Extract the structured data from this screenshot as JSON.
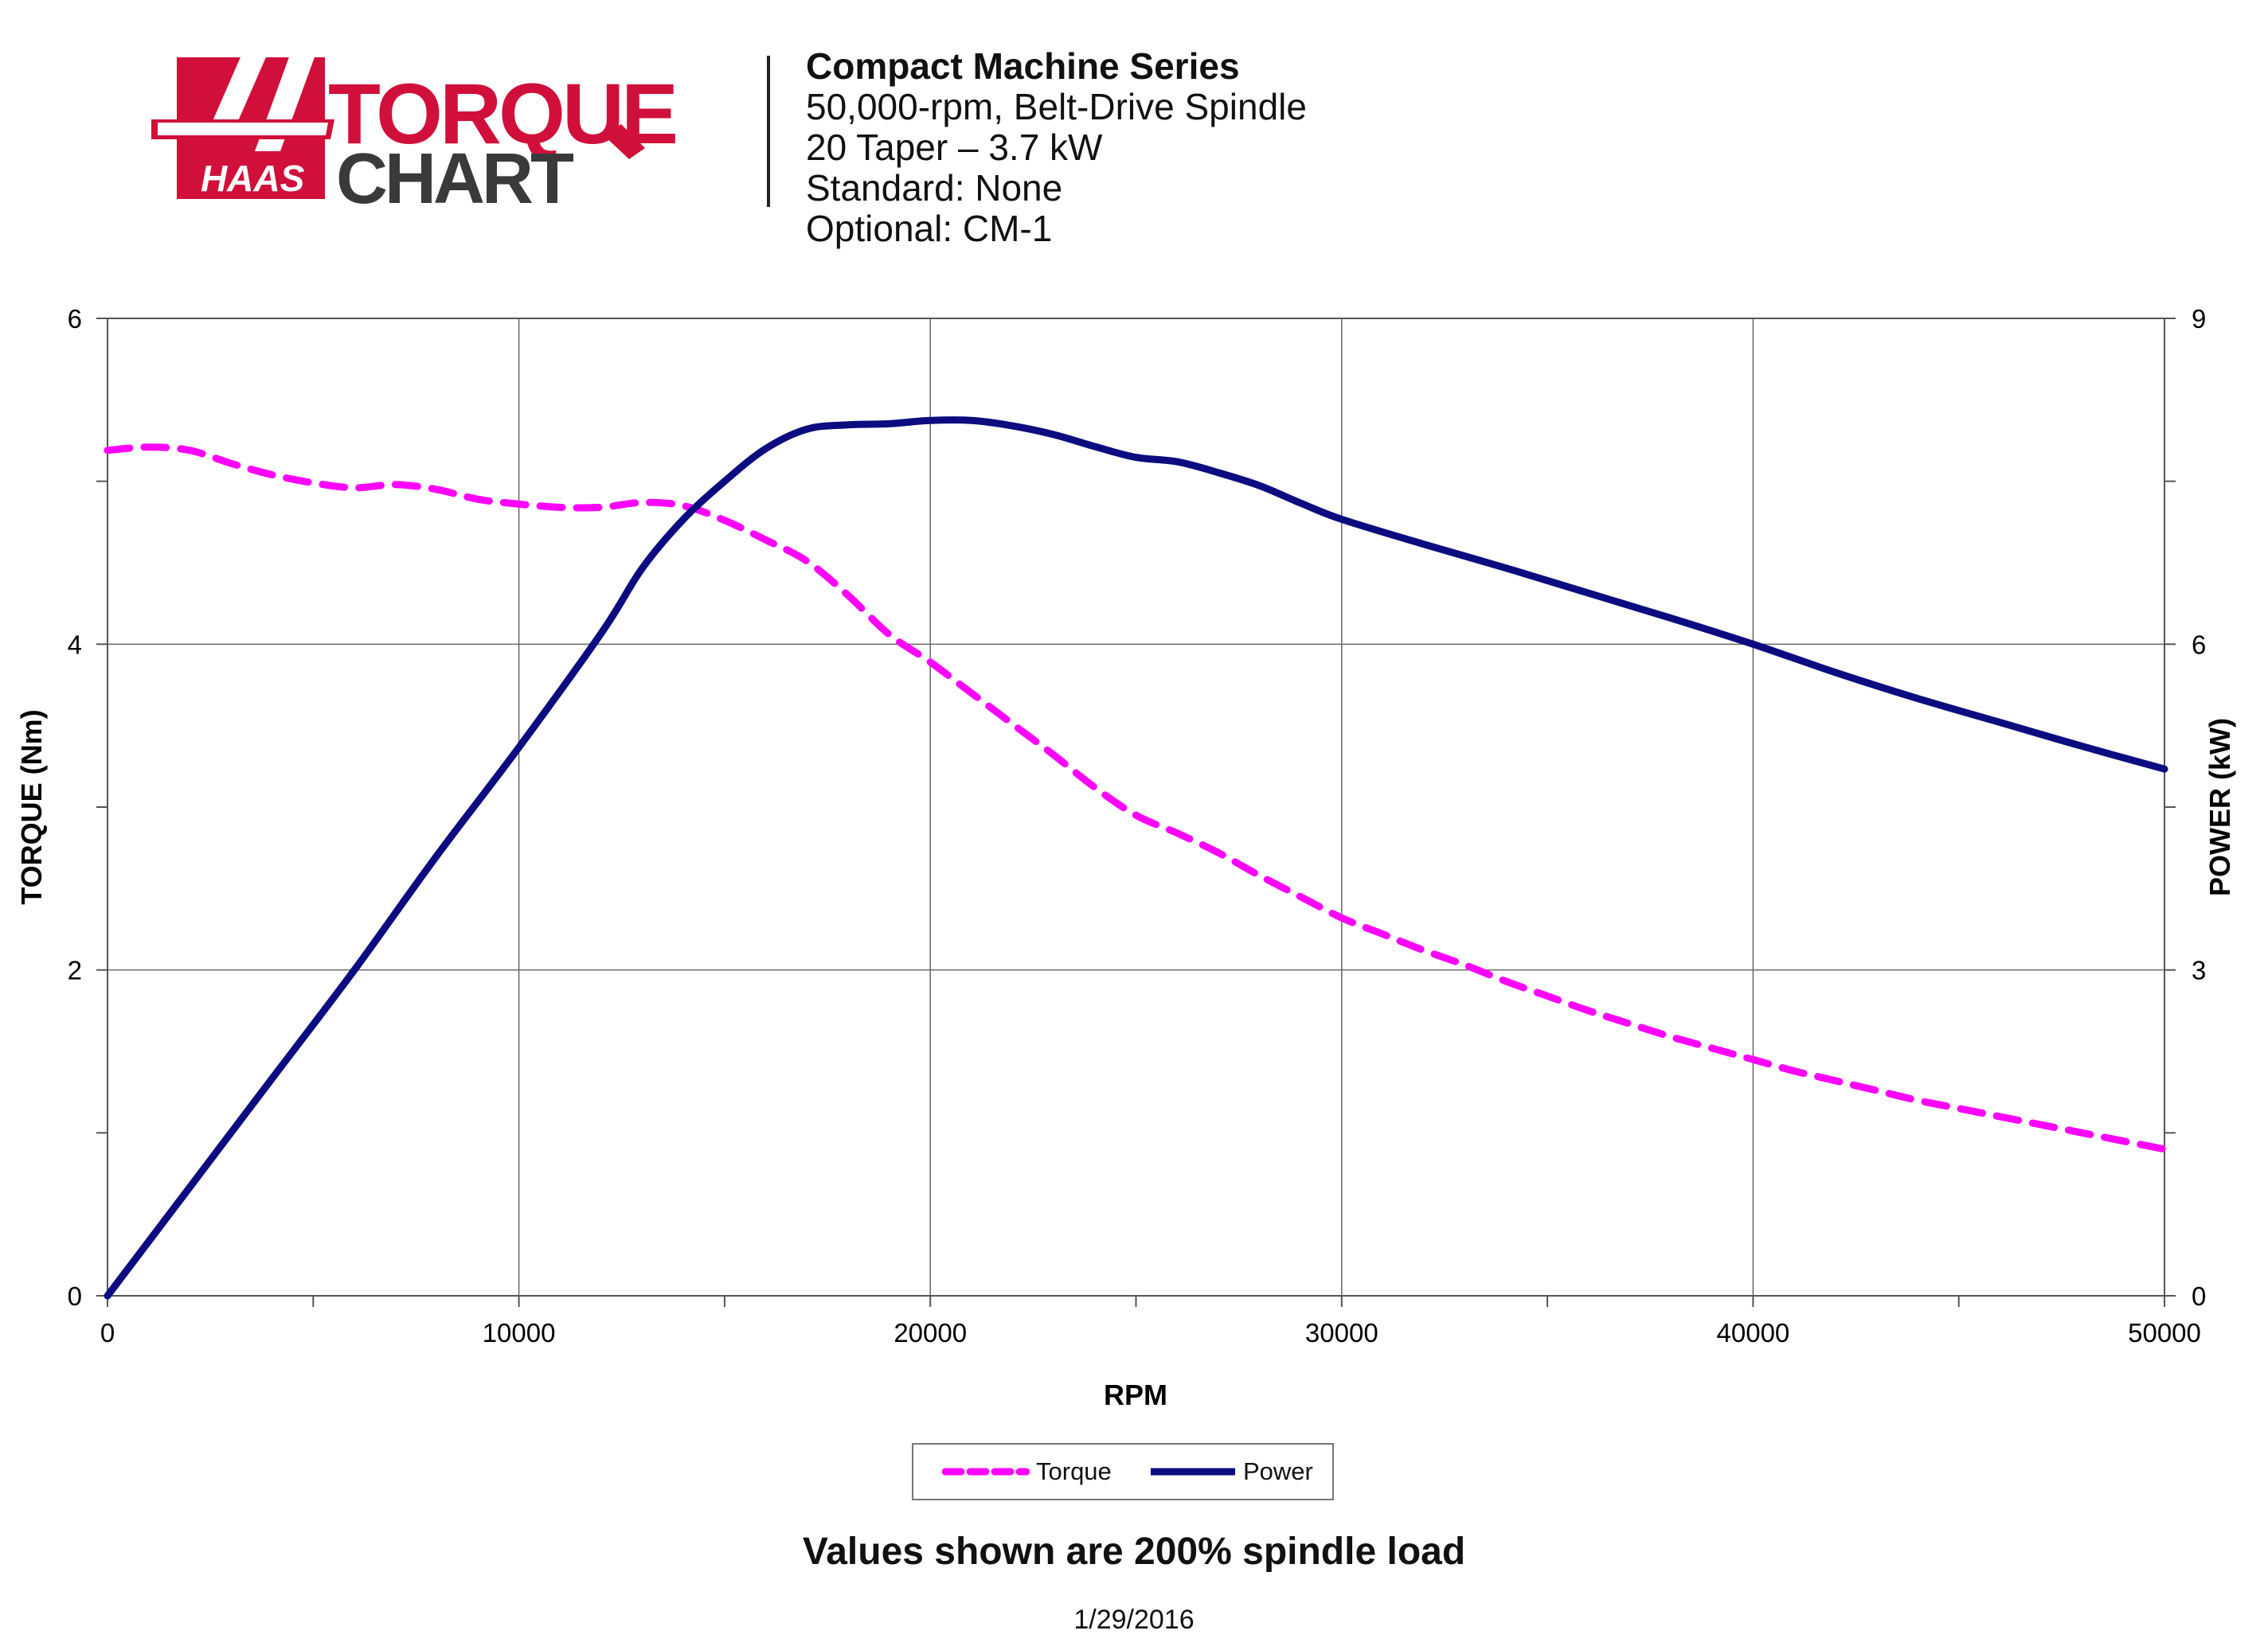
{
  "logo": {
    "brand_text": "HAAS",
    "word1": "TORQUE",
    "word2": "CHART",
    "colors": {
      "red": "#D0103A",
      "dark": "#3A3A3C"
    }
  },
  "header": {
    "title": "Compact Machine Series",
    "lines": [
      "50,000-rpm, Belt-Drive Spindle",
      "20 Taper – 3.7 kW",
      "Standard: None",
      "Optional: CM-1"
    ]
  },
  "chart_data": {
    "type": "line",
    "xlabel": "RPM",
    "ylabel_left": "TORQUE (Nm)",
    "ylabel_right": "POWER (kW)",
    "xlim": [
      0,
      50000
    ],
    "ylim_left": [
      0,
      6
    ],
    "ylim_right": [
      0,
      9
    ],
    "x_ticks": [
      "0",
      "10000",
      "20000",
      "30000",
      "40000",
      "50000"
    ],
    "y_left_ticks": [
      "0",
      "2",
      "4",
      "6"
    ],
    "y_right_ticks": [
      "0",
      "3",
      "6",
      "9"
    ],
    "grid": true,
    "legend_position": "bottom",
    "series": [
      {
        "name": "Torque",
        "axis": "left",
        "color": "#FF00FF",
        "style": "dashed",
        "x": [
          0,
          1000,
          2000,
          3000,
          4000,
          5000,
          6000,
          7000,
          8000,
          9000,
          10000,
          11000,
          12000,
          13000,
          14000,
          15000,
          16000,
          17000,
          18000,
          19000,
          20000,
          21000,
          22000,
          23000,
          24000,
          25000,
          26000,
          27000,
          28000,
          29000,
          30000,
          31000,
          32000,
          33000,
          34000,
          35000,
          36000,
          37000,
          38000,
          39000,
          40000,
          41000,
          42000,
          43000,
          44000,
          45000,
          46000,
          47000,
          48000,
          49000,
          50000
        ],
        "values": [
          5.19,
          5.21,
          5.19,
          5.11,
          5.04,
          4.99,
          4.96,
          4.98,
          4.95,
          4.89,
          4.86,
          4.84,
          4.84,
          4.87,
          4.85,
          4.76,
          4.64,
          4.51,
          4.3,
          4.06,
          3.89,
          3.7,
          3.51,
          3.32,
          3.12,
          2.95,
          2.84,
          2.72,
          2.58,
          2.45,
          2.32,
          2.22,
          2.12,
          2.03,
          1.93,
          1.84,
          1.75,
          1.67,
          1.59,
          1.52,
          1.45,
          1.38,
          1.32,
          1.26,
          1.2,
          1.15,
          1.1,
          1.05,
          1.0,
          0.95,
          0.9
        ]
      },
      {
        "name": "Power",
        "axis": "right",
        "color": "#0C0C80",
        "style": "solid",
        "x": [
          0,
          2000,
          4000,
          6000,
          8000,
          10000,
          12000,
          13000,
          14000,
          15000,
          16000,
          17000,
          18000,
          19000,
          20000,
          21000,
          22000,
          23000,
          24000,
          25000,
          26000,
          27000,
          28000,
          29000,
          30000,
          32000,
          34000,
          36000,
          38000,
          40000,
          42000,
          44000,
          46000,
          48000,
          50000
        ],
        "values": [
          0,
          1.0,
          2.0,
          3.0,
          4.05,
          5.05,
          6.1,
          6.7,
          7.15,
          7.5,
          7.8,
          7.98,
          8.02,
          8.03,
          8.06,
          8.06,
          8.01,
          7.93,
          7.82,
          7.72,
          7.68,
          7.58,
          7.46,
          7.3,
          7.15,
          6.92,
          6.7,
          6.47,
          6.24,
          6.0,
          5.74,
          5.5,
          5.28,
          5.06,
          4.85
        ]
      }
    ]
  },
  "footer": {
    "note": "Values shown are 200% spindle load",
    "date": "1/29/2016"
  }
}
